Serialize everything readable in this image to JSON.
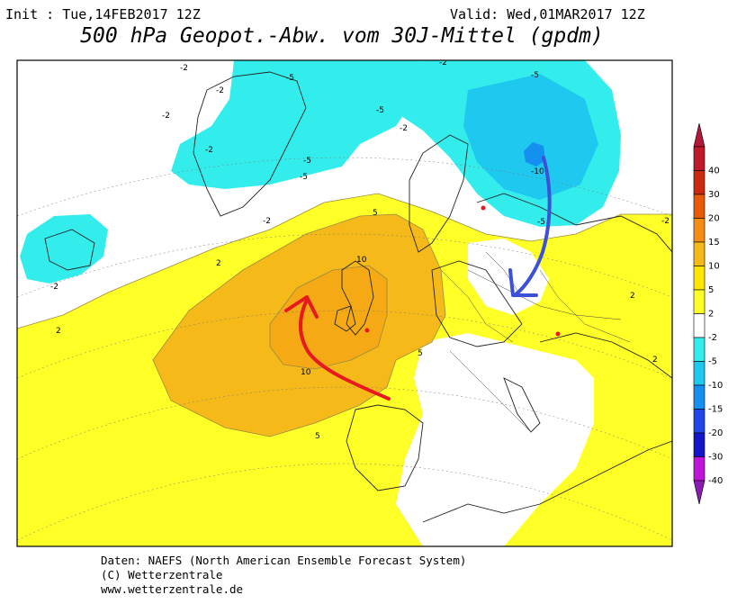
{
  "header": {
    "init": "Init : Tue,14FEB2017 12Z",
    "valid": "Valid: Wed,01MAR2017 12Z",
    "title": "500 hPa Geopot.-Abw. vom 30J-Mittel (gpdm)"
  },
  "legend": {
    "levels": [
      {
        "label": "40",
        "color": "#c01a2a"
      },
      {
        "label": "30",
        "color": "#cc2a10"
      },
      {
        "label": "20",
        "color": "#e85a08"
      },
      {
        "label": "15",
        "color": "#f58c14"
      },
      {
        "label": "10",
        "color": "#f5b91a"
      },
      {
        "label": "5",
        "color": "#ffe600"
      },
      {
        "label": "2",
        "color": "#ffff28"
      },
      {
        "label": "-2",
        "color": "#ffffff"
      },
      {
        "label": "-5",
        "color": "#33eded"
      },
      {
        "label": "-10",
        "color": "#1ec8ee"
      },
      {
        "label": "-15",
        "color": "#1490f0"
      },
      {
        "label": "-20",
        "color": "#2045e8"
      },
      {
        "label": "-30",
        "color": "#1414c8"
      },
      {
        "label": "-40",
        "color": "#c014d8"
      }
    ],
    "top_cap_color": "#b41838",
    "bottom_cap_color": "#8a1ab4"
  },
  "map": {
    "contour_labels": [
      {
        "text": "-2"
      },
      {
        "text": "-2"
      },
      {
        "text": "-2"
      },
      {
        "text": "-2"
      },
      {
        "text": "-5"
      },
      {
        "text": "-5"
      },
      {
        "text": "-5"
      },
      {
        "text": "-5"
      },
      {
        "text": "-2"
      },
      {
        "text": "-2"
      },
      {
        "text": "-2"
      },
      {
        "text": "-5"
      },
      {
        "text": "-10"
      },
      {
        "text": "-5"
      },
      {
        "text": "-2"
      },
      {
        "text": "2"
      },
      {
        "text": "2"
      },
      {
        "text": "5"
      },
      {
        "text": "10"
      },
      {
        "text": "10"
      },
      {
        "text": "5"
      },
      {
        "text": "5"
      },
      {
        "text": "2"
      },
      {
        "text": "-2"
      },
      {
        "text": "2"
      }
    ],
    "warm_arrow_color": "#e8191e",
    "cold_arrow_color": "#3c50d8"
  },
  "footer": {
    "line1": "Daten: NAEFS (North American Ensemble Forecast System)",
    "line2": "(C) Wetterzentrale",
    "line3": "www.wetterzentrale.de"
  }
}
